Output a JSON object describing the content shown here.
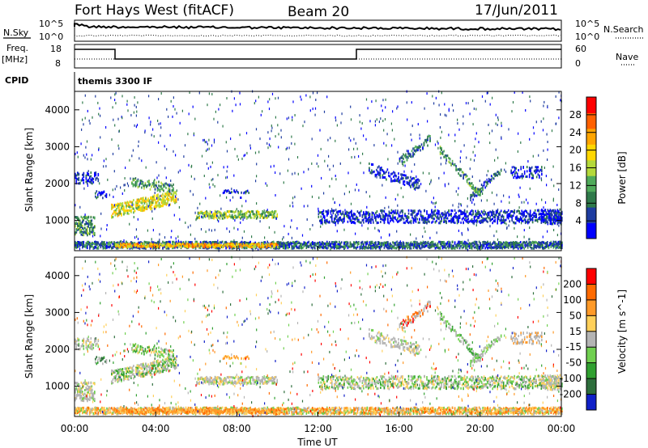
{
  "header": {
    "radar": "Fort Hays West (fitACF)",
    "beam": "Beam 20",
    "date": "17/Jun/2011"
  },
  "colors": {
    "power_scale": [
      "#0000ff",
      "#1e3ca0",
      "#2f7a4a",
      "#4faa5a",
      "#b4d93a",
      "#ffd700",
      "#ffa500",
      "#ff6000",
      "#ff0000"
    ],
    "velocity_scale": [
      "#1020c8",
      "#2e6e3c",
      "#30a030",
      "#70d050",
      "#b4b4b4",
      "#ffd05a",
      "#ff9a28",
      "#ff6a00",
      "#ff0000"
    ]
  },
  "top_panel": {
    "left_label": "N.Sky",
    "right_label": "N.Search",
    "left_ticks": [
      "10^5",
      "10^0"
    ],
    "right_ticks": [
      "10^5",
      "10^0"
    ]
  },
  "freq_panel": {
    "left_label_1": "Freq.",
    "left_label_2": "[MHz]",
    "right_label": "Nave",
    "left_ticks": [
      "18",
      "8"
    ],
    "right_ticks": [
      "60",
      "0"
    ]
  },
  "cpid_panel": {
    "label": "CPID",
    "text": "themis 3300 IF"
  },
  "chart_data": [
    {
      "type": "heatmap",
      "name": "power",
      "ylabel": "Slant Range [km]",
      "ylim": [
        180,
        4500
      ],
      "yticks": [
        "4000",
        "3000",
        "2000",
        "1000"
      ],
      "colorbar_label": "Power [dB]",
      "colorbar_ticks": [
        "28",
        "24",
        "20",
        "16",
        "12",
        "8",
        "4"
      ]
    },
    {
      "type": "heatmap",
      "name": "velocity",
      "ylabel": "Slant Range [km]",
      "ylim": [
        180,
        4500
      ],
      "yticks": [
        "4000",
        "3000",
        "2000",
        "1000"
      ],
      "colorbar_label": "Velocity [m s^-1]",
      "colorbar_ticks": [
        "200",
        "100",
        "50",
        "15",
        "-15",
        "-50",
        "-100",
        "-200"
      ]
    }
  ],
  "x_axis": {
    "label": "Time UT",
    "ticks": [
      "00:00",
      "04:00",
      "08:00",
      "12:00",
      "16:00",
      "20:00",
      "00:00"
    ]
  }
}
